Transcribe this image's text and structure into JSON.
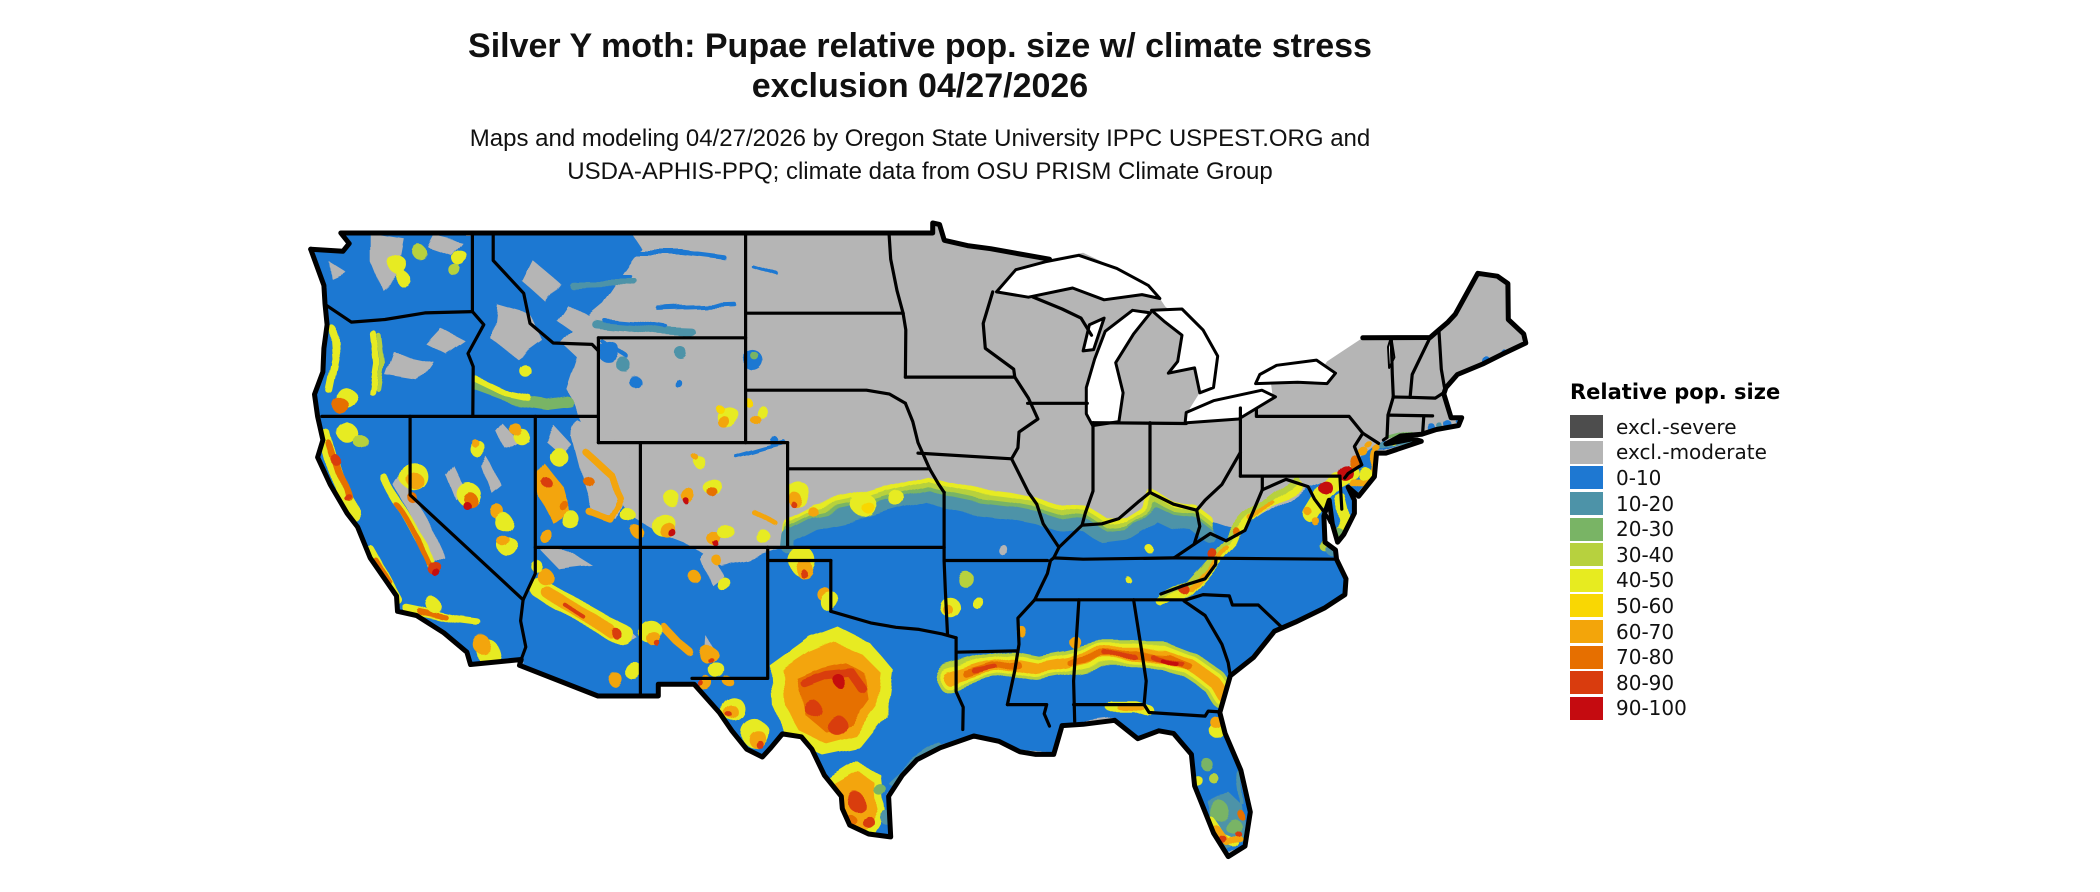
{
  "title": {
    "line1": "Silver Y moth: Pupae relative pop. size w/ climate stress",
    "line2": "exclusion 04/27/2026"
  },
  "subtitle": {
    "line1": "Maps and modeling 04/27/2026 by Oregon State University IPPC USPEST.ORG and",
    "line2": "USDA-APHIS-PPQ; climate data from OSU PRISM Climate Group"
  },
  "legend": {
    "title": "Relative pop. size",
    "items": [
      {
        "label": "excl.-severe",
        "color": "#4d4d4d"
      },
      {
        "label": "excl.-moderate",
        "color": "#b5b5b5"
      },
      {
        "label": "0-10",
        "color": "#1e78d2"
      },
      {
        "label": "10-20",
        "color": "#4d93a8"
      },
      {
        "label": "20-30",
        "color": "#79b465"
      },
      {
        "label": "30-40",
        "color": "#b7d13e"
      },
      {
        "label": "40-50",
        "color": "#e7eb20"
      },
      {
        "label": "50-60",
        "color": "#f9d703"
      },
      {
        "label": "60-70",
        "color": "#f3a50a"
      },
      {
        "label": "70-80",
        "color": "#e66f00"
      },
      {
        "label": "80-90",
        "color": "#d93c0e"
      },
      {
        "label": "90-100",
        "color": "#c50b10"
      }
    ]
  },
  "map": {
    "region": "Contiguous United States",
    "background": "#ffffff",
    "excluded_fill": "#b5b5b5",
    "border_color": "#000000",
    "water_color": "#ffffff"
  }
}
